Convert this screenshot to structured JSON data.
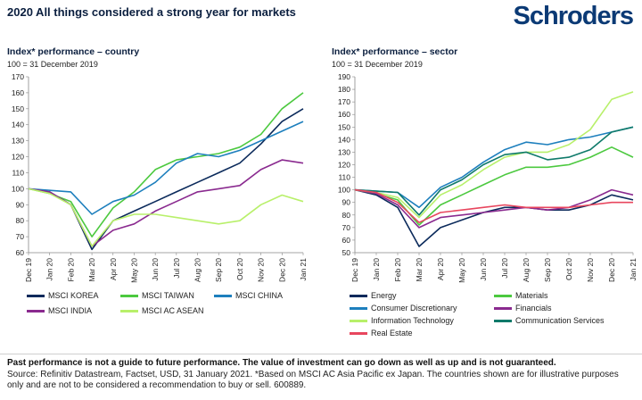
{
  "header": {
    "title": "2020 All things considered a strong year for markets",
    "logo_text": "Schroders"
  },
  "footer": {
    "disclaimer": "Past performance is not a guide to future performance. The value of investment can go down as well as up and is not guaranteed.",
    "source": "Source: Refinitiv Datastream, Factset, USD, 31 January 2021. *Based on MSCI AC Asia Pacific ex Japan. The countries shown are for illustrative purposes only and are not to be considered a recommendation to buy or sell. 600889."
  },
  "chart_data": [
    {
      "type": "line",
      "title": "Index* performance – country",
      "subtitle": "100 = 31 December 2019",
      "ylim": [
        60,
        170
      ],
      "yticks": [
        60,
        70,
        80,
        90,
        100,
        110,
        120,
        130,
        140,
        150,
        160,
        170
      ],
      "xticks": [
        "Dec 19",
        "Jan 20",
        "Feb 20",
        "Mar 20",
        "Apr 20",
        "May 20",
        "Jun 20",
        "Jul 20",
        "Aug 20",
        "Sep 20",
        "Oct 20",
        "Nov 20",
        "Dec 20",
        "Jan 21"
      ],
      "x": [
        "Dec 19",
        "Jan 20",
        "Feb 20",
        "Mar 20",
        "Apr 20",
        "May 20",
        "Jun 20",
        "Jul 20",
        "Aug 20",
        "Sep 20",
        "Oct 20",
        "Nov 20",
        "Dec 20",
        "Jan 21"
      ],
      "grid": false,
      "legend_position": "bottom",
      "series": [
        {
          "name": "MSCI KOREA",
          "color": "#0b2a5b",
          "values": [
            100,
            98,
            90,
            62,
            80,
            86,
            92,
            98,
            104,
            110,
            116,
            128,
            142,
            150
          ]
        },
        {
          "name": "MSCI TAIWAN",
          "color": "#4cc93f",
          "values": [
            100,
            97,
            92,
            70,
            88,
            98,
            112,
            118,
            120,
            122,
            126,
            134,
            150,
            160
          ]
        },
        {
          "name": "MSCI CHINA",
          "color": "#1d7fbd",
          "values": [
            100,
            99,
            98,
            84,
            92,
            96,
            104,
            116,
            122,
            120,
            124,
            130,
            136,
            142
          ]
        },
        {
          "name": "MSCI INDIA",
          "color": "#8a2a8f",
          "values": [
            100,
            98,
            90,
            64,
            74,
            78,
            86,
            92,
            98,
            100,
            102,
            112,
            118,
            116
          ]
        },
        {
          "name": "MSCI AC ASEAN",
          "color": "#b8f06a",
          "values": [
            100,
            97,
            90,
            64,
            80,
            84,
            84,
            82,
            80,
            78,
            80,
            90,
            96,
            92
          ]
        }
      ]
    },
    {
      "type": "line",
      "title": "Index* performance – sector",
      "subtitle": "100 = 31 December 2019",
      "ylim": [
        50,
        190
      ],
      "yticks": [
        50,
        60,
        70,
        80,
        90,
        100,
        110,
        120,
        130,
        140,
        150,
        160,
        170,
        180,
        190
      ],
      "xticks": [
        "Dec 19",
        "Jan 20",
        "Feb 20",
        "Mar 20",
        "Apr 20",
        "May 20",
        "Jun 20",
        "Jul 20",
        "Aug 20",
        "Sep 20",
        "Oct 20",
        "Nov 20",
        "Dec 20",
        "Jan 21"
      ],
      "x": [
        "Dec 19",
        "Jan 20",
        "Feb 20",
        "Mar 20",
        "Apr 20",
        "May 20",
        "Jun 20",
        "Jul 20",
        "Aug 20",
        "Sep 20",
        "Oct 20",
        "Nov 20",
        "Dec 20",
        "Jan 21"
      ],
      "grid": false,
      "legend_position": "bottom",
      "series": [
        {
          "name": "Energy",
          "color": "#0b2a5b",
          "values": [
            100,
            96,
            86,
            55,
            70,
            76,
            82,
            86,
            86,
            84,
            84,
            88,
            96,
            92
          ]
        },
        {
          "name": "Materials",
          "color": "#4cc93f",
          "values": [
            100,
            97,
            92,
            72,
            88,
            96,
            104,
            112,
            118,
            118,
            120,
            126,
            134,
            126
          ]
        },
        {
          "name": "Consumer Discretionary",
          "color": "#1d7fbd",
          "values": [
            100,
            99,
            98,
            86,
            102,
            110,
            122,
            132,
            138,
            136,
            140,
            142,
            146,
            150
          ]
        },
        {
          "name": "Financials",
          "color": "#8a2a8f",
          "values": [
            100,
            97,
            88,
            70,
            78,
            80,
            82,
            84,
            86,
            84,
            86,
            92,
            100,
            96
          ]
        },
        {
          "name": "Information Technology",
          "color": "#b8f06a",
          "values": [
            100,
            98,
            94,
            78,
            96,
            104,
            116,
            126,
            130,
            130,
            136,
            148,
            172,
            178
          ]
        },
        {
          "name": "Communication Services",
          "color": "#0f7a6a",
          "values": [
            100,
            99,
            98,
            80,
            100,
            108,
            120,
            128,
            130,
            124,
            126,
            132,
            146,
            150
          ]
        },
        {
          "name": "Real Estate",
          "color": "#e8465e",
          "values": [
            100,
            98,
            90,
            74,
            82,
            84,
            86,
            88,
            86,
            86,
            86,
            88,
            90,
            90
          ]
        }
      ]
    }
  ]
}
